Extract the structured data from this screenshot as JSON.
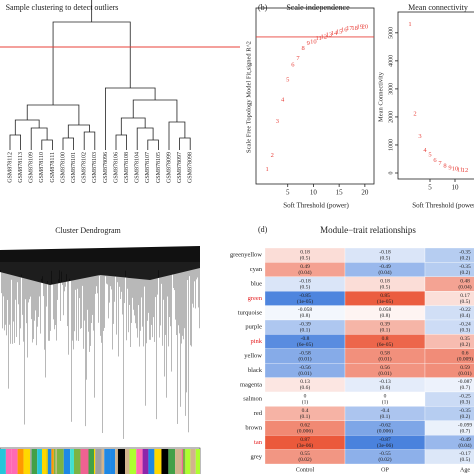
{
  "chart_data": [
    {
      "type": "dendrogram",
      "title": "Sample clustering to detect outliers",
      "line_color": "#e8403a",
      "leaves": [
        "GSM878112",
        "GSM878113",
        "GSM878109",
        "GSM878110",
        "GSM878111",
        "GSM878100",
        "GSM878101",
        "GSM878102",
        "GSM878103",
        "GSM878096",
        "GSM878106",
        "GSM878108",
        "GSM878104",
        "GSM878107",
        "GSM878105",
        "GSM878099",
        "GSM878097",
        "GSM878098"
      ]
    },
    {
      "type": "scatter",
      "panel": "(b)",
      "title": "Scale independence",
      "x_label": "Soft Threshold (power)",
      "y_label": "Scale Free Topology Model Fit,signed R^2",
      "x": [
        1,
        2,
        3,
        4,
        5,
        6,
        7,
        8,
        9,
        10,
        11,
        12,
        13,
        14,
        15,
        16,
        17,
        18,
        19,
        20
      ],
      "values": [
        0.05,
        0.135,
        0.34,
        0.47,
        0.59,
        0.68,
        0.72,
        0.78,
        0.81,
        0.82,
        0.84,
        0.85,
        0.86,
        0.87,
        0.88,
        0.89,
        0.9,
        0.9,
        0.91,
        0.91
      ],
      "color": "#e8403a",
      "hline": 0.85,
      "xlim": [
        0,
        21
      ],
      "ylim": [
        0,
        1
      ],
      "xticks": [
        5,
        10,
        15,
        20
      ]
    },
    {
      "type": "scatter",
      "title": "Mean connectivity",
      "x_label": "Soft Threshold (power)",
      "y_label": "Mean Connectivity",
      "x": [
        1,
        2,
        3,
        4,
        5,
        6,
        7,
        8,
        9,
        10,
        11,
        12
      ],
      "values": [
        5300,
        2100,
        1300,
        800,
        650,
        450,
        330,
        250,
        180,
        140,
        110,
        90
      ],
      "color": "#e8403a",
      "xlim": [
        0,
        13
      ],
      "ylim": [
        0,
        5600
      ],
      "xticks": [
        5,
        10
      ],
      "yticks": [
        0,
        1000,
        2000,
        3000,
        4000,
        5000
      ]
    },
    {
      "type": "cluster",
      "title": "Cluster Dendrogram"
    },
    {
      "type": "heatmap",
      "panel": "(d)",
      "title": "Module−trait relationships",
      "categories": [
        "greenyellow",
        "cyan",
        "blue",
        "green",
        "turquoise",
        "purple",
        "pink",
        "yellow",
        "black",
        "magenta",
        "salmon",
        "red",
        "brown",
        "tan",
        "grey"
      ],
      "highlighted_rows": [
        3,
        6,
        13
      ],
      "highlight_color": "#e41a1c",
      "zlim": [
        -1,
        1
      ],
      "low_color": "#2f6fd8",
      "mid_color": "#ffffff",
      "high_color": "#e8401e",
      "series": [
        {
          "name": "Control",
          "values": [
            0.18,
            0.49,
            -0.18,
            -0.85,
            -0.058,
            -0.39,
            -0.8,
            -0.58,
            -0.56,
            0.13,
            0,
            0.4,
            0.62,
            0.87,
            0.55
          ],
          "p_labels": [
            "(0.5)",
            "(0.04)",
            "(0.5)",
            "(1e-05)",
            "(0.8)",
            "(0.1)",
            "(6e-05)",
            "(0.01)",
            "(0.01)",
            "(0.6)",
            "(1)",
            "(0.1)",
            "(0.006)",
            "(3e-06)",
            "(0.02)"
          ]
        },
        {
          "name": "OP",
          "values": [
            -0.18,
            -0.49,
            0.18,
            0.85,
            0.058,
            0.39,
            0.8,
            0.58,
            0.56,
            -0.13,
            0,
            -0.4,
            -0.62,
            -0.87,
            -0.55
          ],
          "p_labels": [
            "(0.5)",
            "(0.04)",
            "(0.5)",
            "(1e-05)",
            "(0.8)",
            "(0.1)",
            "(6e-05)",
            "(0.01)",
            "(0.01)",
            "(0.6)",
            "(1)",
            "(0.1)",
            "(0.006)",
            "(3e-06)",
            "(0.02)"
          ]
        },
        {
          "name": "Age",
          "values": [
            -0.35,
            -0.35,
            0.48,
            0.17,
            -0.22,
            -0.24,
            0.35,
            0.6,
            0.59,
            -0.087,
            -0.25,
            -0.35,
            -0.099,
            -0.49,
            -0.17
          ],
          "p_labels": [
            "(0.2)",
            "(0.2)",
            "(0.04)",
            "(0.5)",
            "(0.4)",
            "(0.3)",
            "(0.2)",
            "(0.009)",
            "(0.01)",
            "(0.7)",
            "(0.3)",
            "(0.2)",
            "(0.7)",
            "(0.04)",
            "(0.5)"
          ]
        }
      ]
    }
  ]
}
